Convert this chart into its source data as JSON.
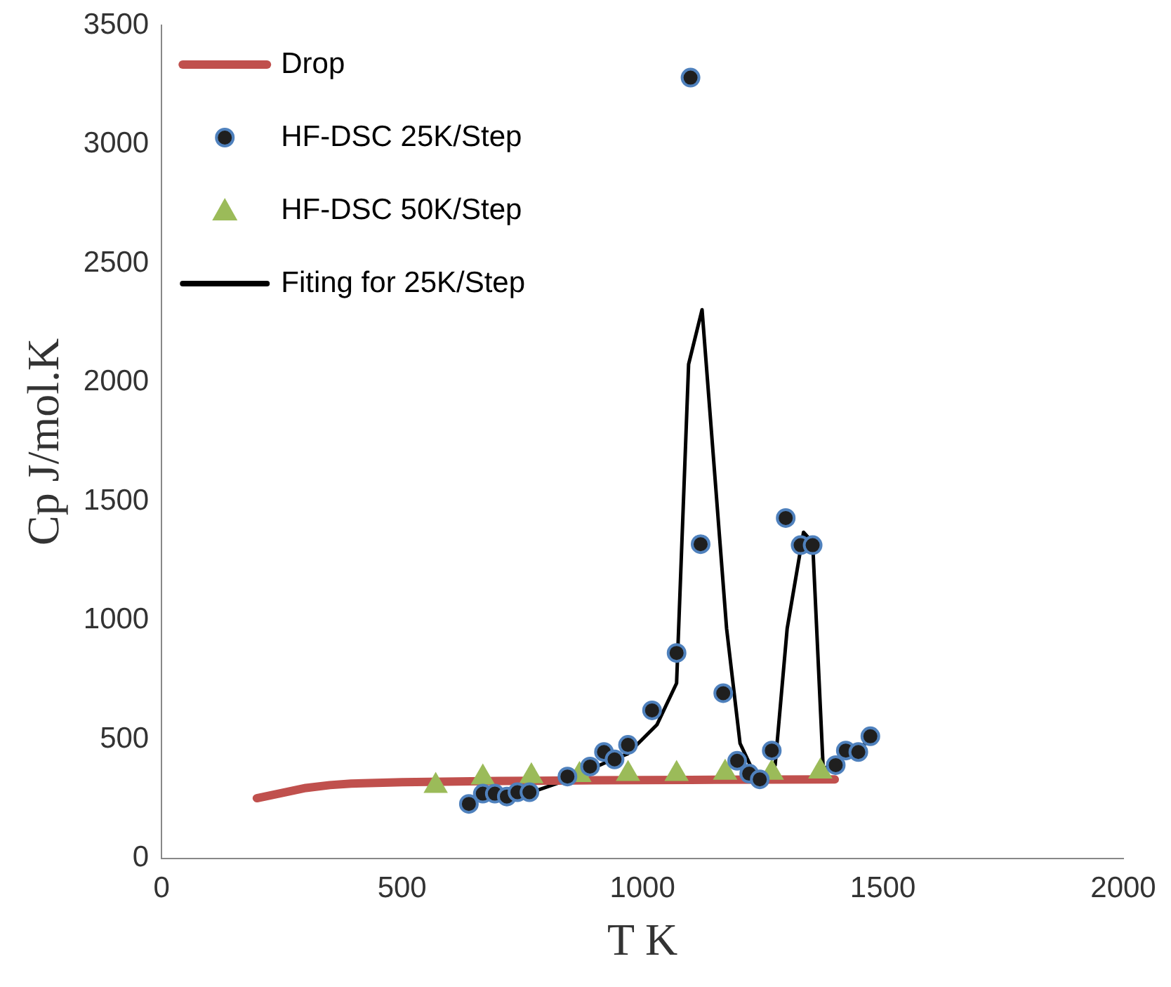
{
  "chart_data": {
    "type": "scatter",
    "xlabel": "T K",
    "ylabel": "Cp J/mol.K",
    "xlim": [
      0,
      2000
    ],
    "xticks": [
      0,
      500,
      1000,
      1500,
      2000
    ],
    "ylim": [
      0,
      3500
    ],
    "yticks": [
      0,
      500,
      1000,
      1500,
      2000,
      2500,
      3000,
      3500
    ],
    "grid": false,
    "legend": "top left",
    "series": [
      {
        "name": "Drop",
        "type": "line",
        "marker": "none",
        "color": "#c0504d",
        "x": [
          198,
          250,
          300,
          350,
          394,
          500,
          700,
          900,
          1100,
          1400
        ],
        "values": [
          253,
          275,
          296,
          308,
          314,
          320,
          325,
          328,
          330,
          332
        ]
      },
      {
        "name": "HF-DSC 25K/Step",
        "type": "scatter",
        "marker": "circle",
        "color": "#1f1f1f",
        "x": [
          639,
          668,
          693,
          718,
          740,
          765,
          844,
          891,
          920,
          942,
          970,
          1020,
          1071,
          1100,
          1121,
          1168,
          1197,
          1222,
          1244,
          1269,
          1298,
          1329,
          1354,
          1402,
          1423,
          1449,
          1474
        ],
        "values": [
          229,
          272,
          272,
          260,
          278,
          278,
          344,
          386,
          447,
          416,
          477,
          622,
          863,
          3280,
          1320,
          694,
          410,
          356,
          332,
          453,
          1430,
          1316,
          1316,
          392,
          453,
          447,
          513
        ]
      },
      {
        "name": "HF-DSC 50K/Step",
        "type": "scatter",
        "marker": "triangle",
        "color": "#9bbb59",
        "x": [
          570,
          668,
          769,
          869,
          970,
          1071,
          1172,
          1269,
          1370
        ],
        "values": [
          305,
          340,
          345,
          350,
          355,
          355,
          360,
          360,
          365
        ]
      },
      {
        "name": "Fiting for 25K/Step",
        "type": "line",
        "marker": "none",
        "color": "#000000",
        "x": [
          655,
          668,
          765,
          844,
          920,
          970,
          1030,
          1071,
          1096,
          1124,
          1175,
          1203,
          1241,
          1276,
          1301,
          1335,
          1354,
          1376,
          1474
        ],
        "values": [
          247,
          265,
          275,
          330,
          400,
          440,
          561,
          736,
          2076,
          2305,
          966,
          483,
          320,
          392,
          966,
          1370,
          1328,
          374,
          495
        ]
      }
    ]
  }
}
